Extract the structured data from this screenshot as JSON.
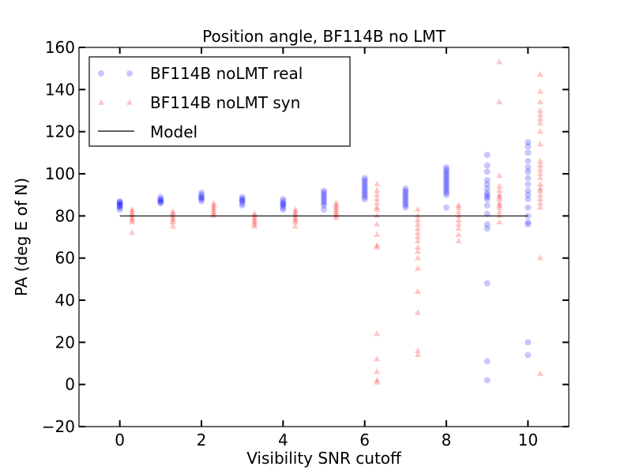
{
  "chart_data": {
    "type": "scatter",
    "title": "Position angle, BF114B no LMT",
    "xlabel": "Visibility SNR cutoff",
    "ylabel": "PA (deg E of N)",
    "xlim": [
      -1,
      11.0
    ],
    "ylim": [
      -20,
      160
    ],
    "xticks": [
      0,
      2,
      4,
      6,
      8,
      10
    ],
    "yticks": [
      -20,
      0,
      20,
      40,
      60,
      80,
      100,
      120,
      140,
      160
    ],
    "legend_position": "top-left",
    "series": [
      {
        "name": "BF114B noLMT real",
        "marker": "circle",
        "color": "#0000ff",
        "points": [
          [
            0,
            84
          ],
          [
            0,
            85
          ],
          [
            0,
            86
          ],
          [
            0,
            87
          ],
          [
            0,
            85.5
          ],
          [
            0,
            86.5
          ],
          [
            0,
            84.5
          ],
          [
            0,
            83
          ],
          [
            1,
            86
          ],
          [
            1,
            87
          ],
          [
            1,
            88
          ],
          [
            1,
            89
          ],
          [
            1,
            87.5
          ],
          [
            1,
            86.5
          ],
          [
            2,
            87
          ],
          [
            2,
            88
          ],
          [
            2,
            89
          ],
          [
            2,
            90
          ],
          [
            2,
            91
          ],
          [
            2,
            88.5
          ],
          [
            3,
            85
          ],
          [
            3,
            86
          ],
          [
            3,
            87
          ],
          [
            3,
            88
          ],
          [
            3,
            89
          ],
          [
            3,
            87.5
          ],
          [
            4,
            83
          ],
          [
            4,
            84
          ],
          [
            4,
            85
          ],
          [
            4,
            86
          ],
          [
            4,
            87
          ],
          [
            4,
            88
          ],
          [
            4,
            85.5
          ],
          [
            5,
            83
          ],
          [
            5,
            85
          ],
          [
            5,
            86
          ],
          [
            5,
            87
          ],
          [
            5,
            88
          ],
          [
            5,
            89
          ],
          [
            5,
            90
          ],
          [
            5,
            91
          ],
          [
            5,
            92
          ],
          [
            6,
            88
          ],
          [
            6,
            89
          ],
          [
            6,
            90
          ],
          [
            6,
            91
          ],
          [
            6,
            92
          ],
          [
            6,
            93
          ],
          [
            6,
            94
          ],
          [
            6,
            95
          ],
          [
            6,
            96
          ],
          [
            6,
            97
          ],
          [
            6,
            98
          ],
          [
            7,
            84
          ],
          [
            7,
            85
          ],
          [
            7,
            86
          ],
          [
            7,
            87
          ],
          [
            7,
            88
          ],
          [
            7,
            89
          ],
          [
            7,
            90
          ],
          [
            7,
            91
          ],
          [
            7,
            92
          ],
          [
            7,
            93
          ],
          [
            8,
            84
          ],
          [
            8,
            90
          ],
          [
            8,
            91
          ],
          [
            8,
            92
          ],
          [
            8,
            93
          ],
          [
            8,
            94
          ],
          [
            8,
            95
          ],
          [
            8,
            96
          ],
          [
            8,
            97
          ],
          [
            8,
            98
          ],
          [
            8,
            99
          ],
          [
            8,
            100
          ],
          [
            8,
            101
          ],
          [
            8,
            102
          ],
          [
            8,
            103
          ],
          [
            9,
            2
          ],
          [
            9,
            11
          ],
          [
            9,
            48
          ],
          [
            9,
            74
          ],
          [
            9,
            76
          ],
          [
            9,
            81
          ],
          [
            9,
            85
          ],
          [
            9,
            88
          ],
          [
            9,
            89
          ],
          [
            9,
            90
          ],
          [
            9,
            91
          ],
          [
            9,
            93
          ],
          [
            9,
            95
          ],
          [
            9,
            97
          ],
          [
            9,
            101
          ],
          [
            9,
            104
          ],
          [
            9,
            109
          ],
          [
            10,
            14
          ],
          [
            10,
            20
          ],
          [
            10,
            76
          ],
          [
            10,
            77
          ],
          [
            10,
            80
          ],
          [
            10,
            84
          ],
          [
            10,
            88
          ],
          [
            10,
            90
          ],
          [
            10,
            92
          ],
          [
            10,
            95
          ],
          [
            10,
            98
          ],
          [
            10,
            101
          ],
          [
            10,
            103
          ],
          [
            10,
            106
          ],
          [
            10,
            110
          ],
          [
            10,
            113
          ],
          [
            10,
            115
          ]
        ]
      },
      {
        "name": "BF114B noLMT syn",
        "marker": "triangle",
        "color": "#ff0000",
        "points": [
          [
            0.3,
            72
          ],
          [
            0.3,
            77
          ],
          [
            0.3,
            78
          ],
          [
            0.3,
            79
          ],
          [
            0.3,
            80
          ],
          [
            0.3,
            81
          ],
          [
            0.3,
            82
          ],
          [
            0.3,
            83
          ],
          [
            1.3,
            75
          ],
          [
            1.3,
            77
          ],
          [
            1.3,
            78
          ],
          [
            1.3,
            79
          ],
          [
            1.3,
            80
          ],
          [
            1.3,
            81
          ],
          [
            1.3,
            82
          ],
          [
            2.3,
            80
          ],
          [
            2.3,
            81
          ],
          [
            2.3,
            82
          ],
          [
            2.3,
            83
          ],
          [
            2.3,
            84
          ],
          [
            2.3,
            85
          ],
          [
            2.3,
            86
          ],
          [
            3.3,
            75
          ],
          [
            3.3,
            76
          ],
          [
            3.3,
            77
          ],
          [
            3.3,
            78
          ],
          [
            3.3,
            79
          ],
          [
            3.3,
            80
          ],
          [
            3.3,
            81
          ],
          [
            4.3,
            75
          ],
          [
            4.3,
            77
          ],
          [
            4.3,
            78
          ],
          [
            4.3,
            79
          ],
          [
            4.3,
            80
          ],
          [
            4.3,
            81
          ],
          [
            4.3,
            82
          ],
          [
            4.3,
            83
          ],
          [
            5.3,
            79
          ],
          [
            5.3,
            80
          ],
          [
            5.3,
            81
          ],
          [
            5.3,
            82
          ],
          [
            5.3,
            83
          ],
          [
            5.3,
            84
          ],
          [
            5.3,
            85
          ],
          [
            5.3,
            86
          ],
          [
            6.3,
            1
          ],
          [
            6.3,
            2
          ],
          [
            6.3,
            6
          ],
          [
            6.3,
            12
          ],
          [
            6.3,
            24
          ],
          [
            6.3,
            65
          ],
          [
            6.3,
            66
          ],
          [
            6.3,
            71
          ],
          [
            6.3,
            76
          ],
          [
            6.3,
            80
          ],
          [
            6.3,
            83
          ],
          [
            6.3,
            84
          ],
          [
            6.3,
            86
          ],
          [
            6.3,
            88
          ],
          [
            6.3,
            90
          ],
          [
            6.3,
            92
          ],
          [
            6.3,
            95
          ],
          [
            7.3,
            14
          ],
          [
            7.3,
            16
          ],
          [
            7.3,
            34
          ],
          [
            7.3,
            44
          ],
          [
            7.3,
            55
          ],
          [
            7.3,
            60
          ],
          [
            7.3,
            63
          ],
          [
            7.3,
            65
          ],
          [
            7.3,
            68
          ],
          [
            7.3,
            70
          ],
          [
            7.3,
            72
          ],
          [
            7.3,
            74
          ],
          [
            7.3,
            76
          ],
          [
            7.3,
            78
          ],
          [
            7.3,
            80
          ],
          [
            7.3,
            83
          ],
          [
            8.3,
            68
          ],
          [
            8.3,
            71
          ],
          [
            8.3,
            74
          ],
          [
            8.3,
            76
          ],
          [
            8.3,
            78
          ],
          [
            8.3,
            80
          ],
          [
            8.3,
            82
          ],
          [
            8.3,
            84
          ],
          [
            8.3,
            85
          ],
          [
            9.3,
            77
          ],
          [
            9.3,
            80
          ],
          [
            9.3,
            82
          ],
          [
            9.3,
            84
          ],
          [
            9.3,
            85
          ],
          [
            9.3,
            86
          ],
          [
            9.3,
            88
          ],
          [
            9.3,
            89
          ],
          [
            9.3,
            90
          ],
          [
            9.3,
            92
          ],
          [
            9.3,
            94
          ],
          [
            9.3,
            99
          ],
          [
            9.3,
            134
          ],
          [
            9.3,
            153
          ],
          [
            10.3,
            5
          ],
          [
            10.3,
            60
          ],
          [
            10.3,
            84
          ],
          [
            10.3,
            86
          ],
          [
            10.3,
            88
          ],
          [
            10.3,
            90
          ],
          [
            10.3,
            92
          ],
          [
            10.3,
            93
          ],
          [
            10.3,
            95
          ],
          [
            10.3,
            98
          ],
          [
            10.3,
            100
          ],
          [
            10.3,
            102
          ],
          [
            10.3,
            104
          ],
          [
            10.3,
            106
          ],
          [
            10.3,
            114
          ],
          [
            10.3,
            120
          ],
          [
            10.3,
            124
          ],
          [
            10.3,
            126
          ],
          [
            10.3,
            128
          ],
          [
            10.3,
            130
          ],
          [
            10.3,
            134
          ],
          [
            10.3,
            139
          ],
          [
            10.3,
            147
          ]
        ]
      },
      {
        "name": "Model",
        "marker": "line",
        "color": "#000000",
        "points": [
          [
            0,
            80
          ],
          [
            10,
            80
          ]
        ]
      }
    ]
  }
}
